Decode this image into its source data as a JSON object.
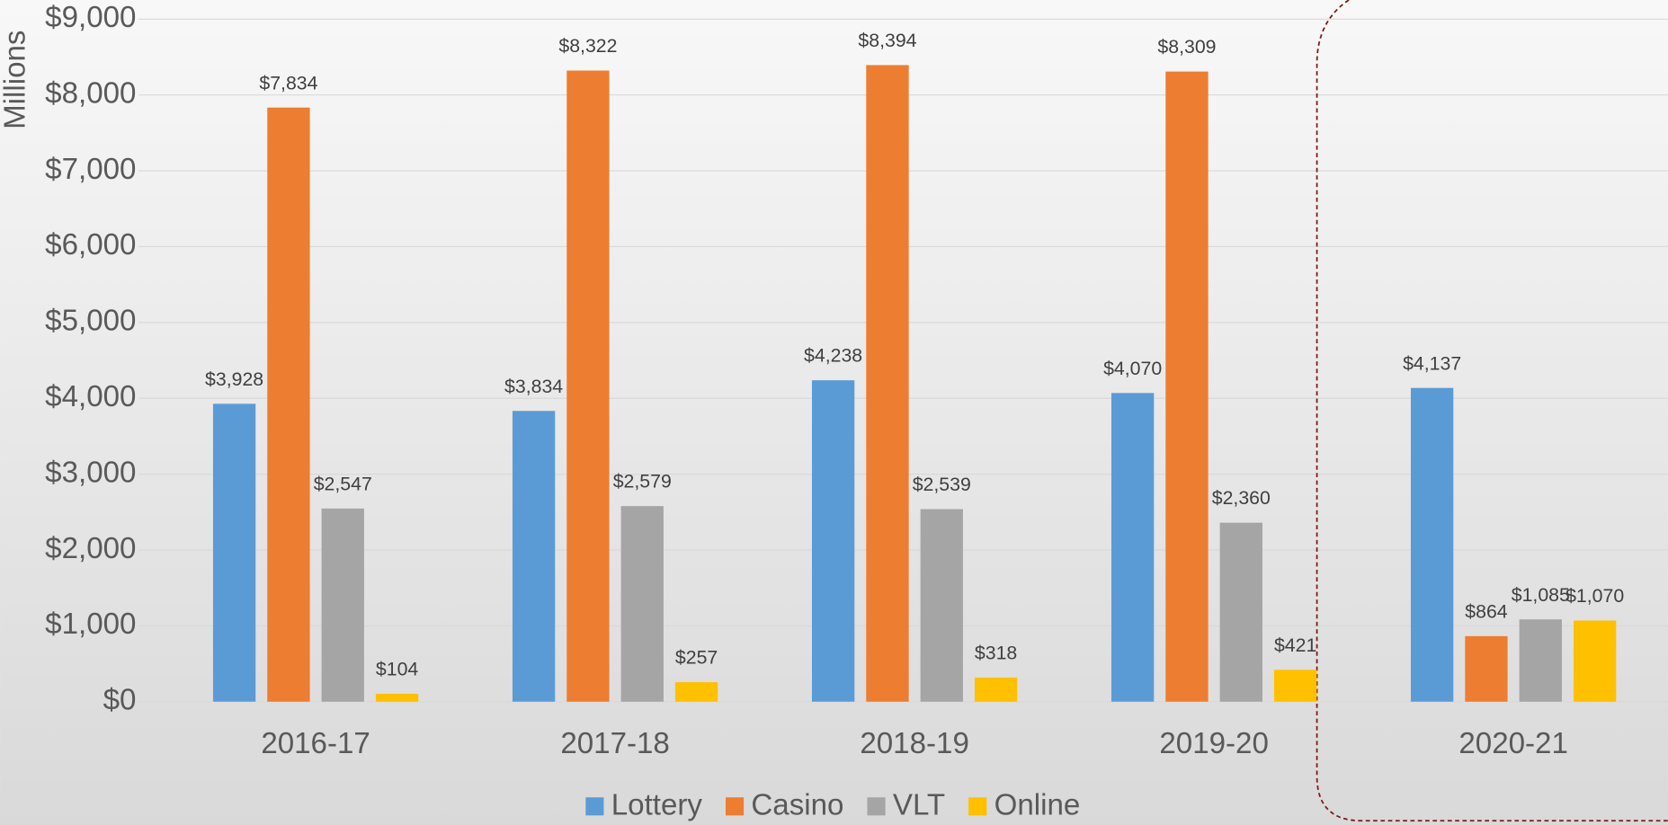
{
  "chart_data": {
    "type": "bar",
    "y_axis_label": "Millions",
    "categories": [
      "2016-17",
      "2017-18",
      "2018-19",
      "2019-20",
      "2020-21"
    ],
    "series": [
      {
        "name": "Lottery",
        "color": "#5b9bd5",
        "values": [
          3928,
          3834,
          4238,
          4070,
          4137
        ],
        "value_labels": [
          "$3,928",
          "$3,834",
          "$4,238",
          "$4,070",
          "$4,137"
        ]
      },
      {
        "name": "Casino",
        "color": "#ed7d31",
        "values": [
          7834,
          8322,
          8394,
          8309,
          864
        ],
        "value_labels": [
          "$7,834",
          "$8,322",
          "$8,394",
          "$8,309",
          "$864"
        ]
      },
      {
        "name": "VLT",
        "color": "#a5a5a5",
        "values": [
          2547,
          2579,
          2539,
          2360,
          1085
        ],
        "value_labels": [
          "$2,547",
          "$2,579",
          "$2,539",
          "$2,360",
          "$1,085"
        ]
      },
      {
        "name": "Online",
        "color": "#ffc000",
        "values": [
          104,
          257,
          318,
          421,
          1070
        ],
        "value_labels": [
          "$104",
          "$257",
          "$318",
          "$421",
          "$1,070"
        ]
      }
    ],
    "ylim": [
      0,
      9000
    ],
    "yticks": [
      {
        "value": 0,
        "label": "$0"
      },
      {
        "value": 1000,
        "label": "$1,000"
      },
      {
        "value": 2000,
        "label": "$2,000"
      },
      {
        "value": 3000,
        "label": "$3,000"
      },
      {
        "value": 4000,
        "label": "$4,000"
      },
      {
        "value": 5000,
        "label": "$5,000"
      },
      {
        "value": 6000,
        "label": "$6,000"
      },
      {
        "value": 7000,
        "label": "$7,000"
      },
      {
        "value": 8000,
        "label": "$8,000"
      },
      {
        "value": 9000,
        "label": "$9,000"
      }
    ],
    "grid": true,
    "legend": "bottom"
  }
}
